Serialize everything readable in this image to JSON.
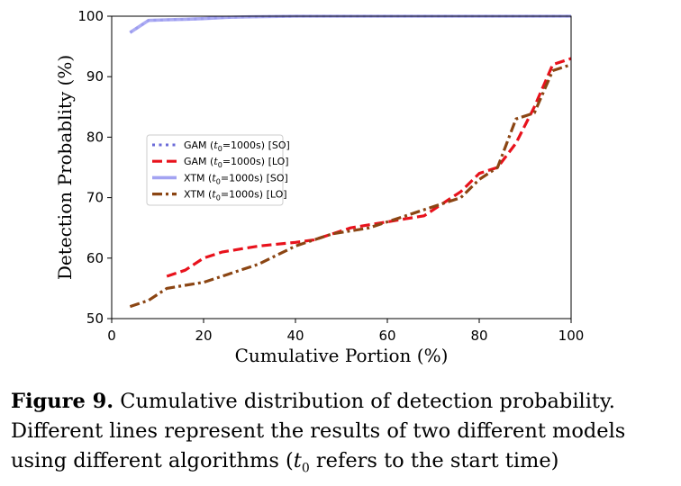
{
  "chart_data": {
    "type": "line",
    "xlabel": "Cumulative Portion (%)",
    "ylabel": "Detection Probablity (%)",
    "xlim": [
      0,
      100
    ],
    "ylim": [
      50,
      100
    ],
    "xticks": [
      0,
      20,
      40,
      60,
      80,
      100
    ],
    "yticks": [
      50,
      60,
      70,
      80,
      90,
      100
    ],
    "grid": false,
    "legend_position": "center-left",
    "series": [
      {
        "name": "GAM (t0=1000s) [SO]",
        "color": "#6b6bd8",
        "style": "dotted",
        "x": [
          4,
          8,
          12,
          16,
          20,
          25,
          30,
          40,
          50,
          60,
          70,
          80,
          90,
          100
        ],
        "y": [
          97.3,
          99.3,
          99.4,
          99.5,
          99.6,
          99.8,
          99.9,
          100,
          100,
          100,
          100,
          100,
          100,
          100
        ]
      },
      {
        "name": "GAM (t0=1000s) [LO]",
        "color": "#e8121c",
        "style": "dashed",
        "x": [
          12,
          16,
          20,
          24,
          28,
          32,
          36,
          40,
          44,
          48,
          52,
          56,
          60,
          64,
          68,
          72,
          76,
          80,
          84,
          88,
          92,
          96,
          100
        ],
        "y": [
          57,
          58,
          60,
          61,
          61.5,
          62,
          62.3,
          62.6,
          63,
          64,
          65,
          65.5,
          66,
          66.5,
          67,
          69,
          71,
          74,
          75,
          79,
          85,
          92,
          93
        ]
      },
      {
        "name": "XTM (t0=1000s) [SO]",
        "color": "#a3a3f2",
        "style": "solid",
        "x": [
          4,
          8,
          12,
          16,
          20,
          25,
          30,
          40,
          50,
          60,
          70,
          80,
          90,
          100
        ],
        "y": [
          97.3,
          99.3,
          99.4,
          99.5,
          99.6,
          99.8,
          99.9,
          100,
          100,
          100,
          100,
          100,
          100,
          100
        ]
      },
      {
        "name": "XTM (t0=1000s) [LO]",
        "color": "#8b4513",
        "style": "dashdot",
        "x": [
          4,
          8,
          12,
          16,
          20,
          24,
          28,
          32,
          36,
          40,
          44,
          48,
          52,
          56,
          60,
          64,
          68,
          72,
          76,
          80,
          84,
          88,
          92,
          96,
          100
        ],
        "y": [
          52,
          53,
          55,
          55.5,
          56,
          57,
          58,
          59,
          60.5,
          62,
          63,
          64,
          64.5,
          65,
          66,
          67,
          68,
          69,
          70,
          73,
          75,
          83,
          84,
          91,
          92
        ]
      }
    ],
    "legend": [
      {
        "label": "GAM (",
        "sub": "0",
        "tail": "=1000s) [SO]"
      },
      {
        "label": "GAM (",
        "sub": "0",
        "tail": "=1000s) [LO]"
      },
      {
        "label": "XTM (",
        "sub": "0",
        "tail": "=1000s) [SO]"
      },
      {
        "label": "XTM (",
        "sub": "0",
        "tail": "=1000s) [LO]"
      }
    ]
  },
  "caption": {
    "label": "Figure 9.",
    "text_1": " Cumulative distribution of detection probability. Different lines represent the results of two different models using different algorithms (",
    "var": "t",
    "var_sub": "0",
    "text_2": " refers to the start time)"
  }
}
